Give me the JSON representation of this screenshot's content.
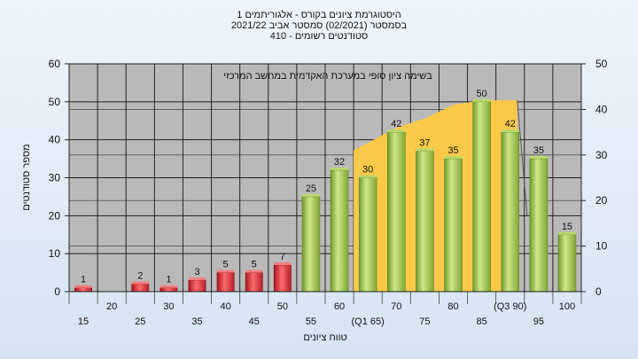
{
  "header": {
    "line1": "היסטוגרמת ציונים בקורס - אלגוריתמים 1",
    "line2": "בסמסטר  (02/2021)  סמסטר אביב 2021/22",
    "line3": "סטודנטים רשומים - 410"
  },
  "colors": {
    "plot_bg": "#b9b9b9",
    "area_fill": "#fbc94a",
    "bar_red": "#e0313a",
    "bar_green": "#9cc249",
    "app_bg": "#dfe9f5"
  },
  "chart_data": {
    "type": "bar",
    "title": "בשימה ציון סופי במערכת האקדמית במחשב המרכזי",
    "xlabel": "טווח ציונים",
    "ylabel": "מספר סטודנטים",
    "ylim": [
      0,
      60
    ],
    "y_ticks": [
      0,
      10,
      20,
      30,
      40,
      50,
      60
    ],
    "y2lim": [
      0,
      50
    ],
    "y2_ticks": [
      0,
      10,
      20,
      30,
      40,
      50
    ],
    "grid": true,
    "categories": [
      "15",
      "20",
      "25",
      "30",
      "35",
      "40",
      "45",
      "50",
      "55",
      "60",
      "65",
      "70",
      "75",
      "80",
      "85",
      "90",
      "95",
      "100"
    ],
    "category_labels": [
      "15",
      "20",
      "25",
      "30",
      "35",
      "40",
      "45",
      "50",
      "55",
      "60",
      "(Q1 65)",
      "70",
      "75",
      "80",
      "85",
      "(Q3 90)",
      "95",
      "100"
    ],
    "series": [
      {
        "values": [
          1,
          null,
          2,
          1,
          3,
          5,
          5,
          7,
          25,
          32,
          30,
          42,
          37,
          35,
          50,
          42,
          35,
          15
        ]
      }
    ],
    "bar_colors": [
      "red",
      "red",
      "red",
      "red",
      "red",
      "red",
      "red",
      "red",
      "green",
      "green",
      "green",
      "green",
      "green",
      "green",
      "green",
      "green",
      "green",
      "green"
    ],
    "quartile_area": {
      "description_shape": "interquartile shaded region from Q1 to Q3",
      "points": [
        {
          "x": "65",
          "y2": 31
        },
        {
          "x": "70",
          "y2": 36
        },
        {
          "x": "75",
          "y2": 38
        },
        {
          "x": "80",
          "y2": 41
        },
        {
          "x": "85",
          "y2": 42
        },
        {
          "x": "90",
          "y2": 42
        }
      ]
    }
  }
}
